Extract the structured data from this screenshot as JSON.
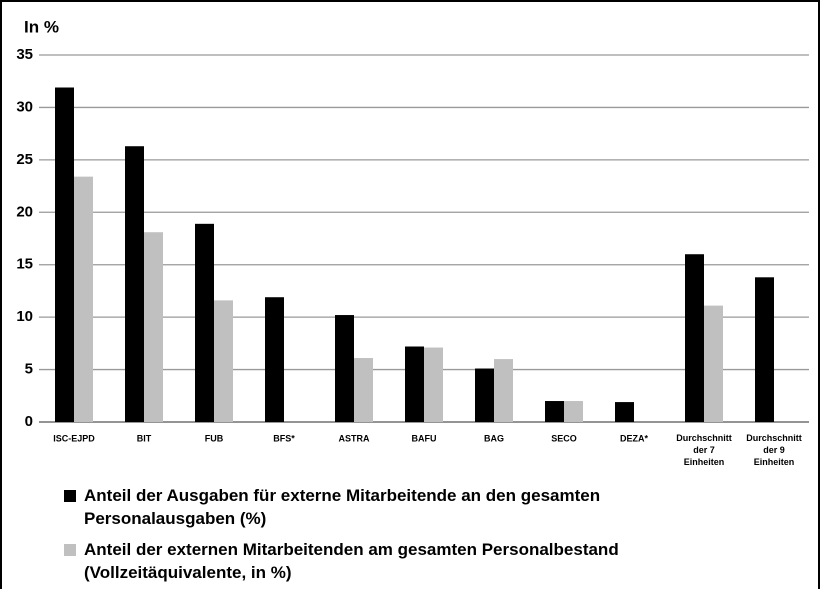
{
  "chart_data": {
    "type": "bar",
    "ylabel": "In %",
    "categories": [
      "ISC-EJPD",
      "BIT",
      "FUB",
      "BFS*",
      "ASTRA",
      "BAFU",
      "BAG",
      "SECO",
      "DEZA*",
      "Durchschnitt der 7 Einheiten",
      "Durchschnitt der 9 Einheiten"
    ],
    "series": [
      {
        "name": "Anteil der Ausgaben für externe Mitarbeitende an den gesamten Personalausgaben (%)",
        "color": "#000000",
        "values": [
          31.9,
          26.3,
          18.9,
          11.9,
          10.2,
          7.2,
          5.1,
          2.0,
          1.9,
          16.0,
          13.8
        ]
      },
      {
        "name": "Anteil der externen Mitarbeitenden am gesamten Personalbestand (Vollzeitäquivalente, in %)",
        "color": "#c0c0c0",
        "values": [
          23.4,
          18.1,
          11.6,
          null,
          6.1,
          7.1,
          6.0,
          2.0,
          null,
          11.1,
          null
        ]
      }
    ],
    "ylim": [
      0,
      35
    ],
    "yticks": [
      0,
      5,
      10,
      15,
      20,
      25,
      30,
      35
    ],
    "grid": true,
    "legend": "bottom"
  }
}
